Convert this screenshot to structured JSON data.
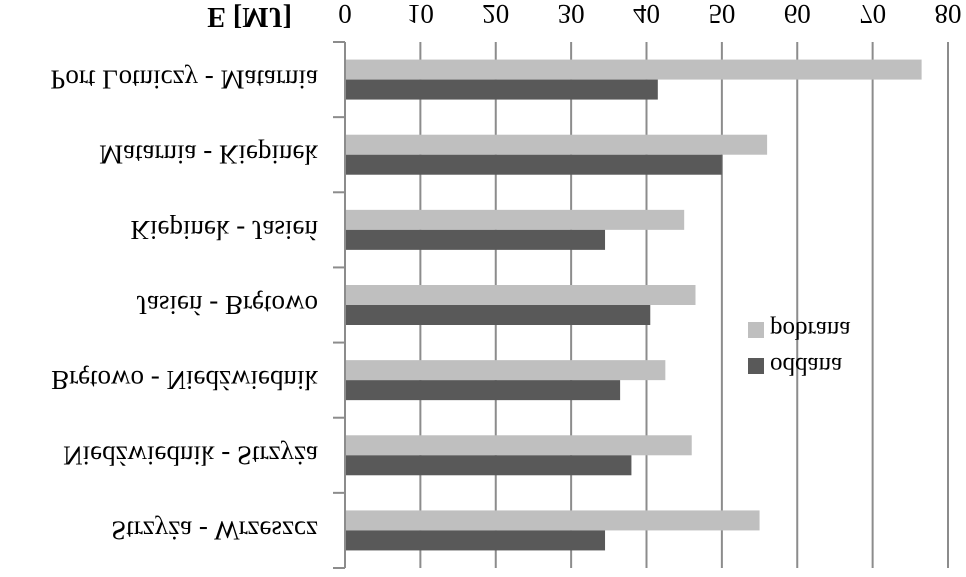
{
  "chart_data": {
    "type": "bar",
    "orientation": "horizontal",
    "title": "",
    "xlabel": "E [MJ]",
    "ylabel": "",
    "xlim": [
      0,
      80
    ],
    "x_ticks": [
      0,
      10,
      20,
      30,
      40,
      50,
      60,
      70,
      80
    ],
    "x_axis_position": "top",
    "grid": true,
    "legend_position": "right",
    "categories": [
      "Port Lotniczy - Matarnia",
      "Matarnia - Kiepinek",
      "Kiepinek - Jasień",
      "Jasień - Brętowo",
      "Brętowo - Niedźwiednik",
      "Niedźwiednik - Strzyża",
      "Strzyża - Wrzeszcz"
    ],
    "series": [
      {
        "name": "pobrana",
        "color": "#bfbfbf",
        "values": [
          76.5,
          56,
          45,
          46.5,
          42.5,
          46,
          55
        ]
      },
      {
        "name": "oddana",
        "color": "#595959",
        "values": [
          41.5,
          50,
          34.5,
          40.5,
          36.5,
          38,
          34.5
        ]
      }
    ]
  }
}
